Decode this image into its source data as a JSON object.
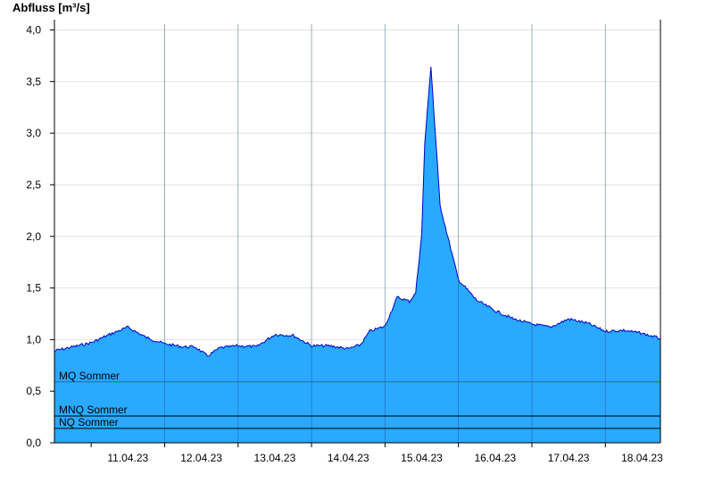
{
  "chart_data": {
    "type": "area",
    "ylabel": "Abfluss [m³/s]",
    "ylim": [
      0,
      4.1
    ],
    "yticks": [
      0.0,
      0.5,
      1.0,
      1.5,
      2.0,
      2.5,
      3.0,
      3.5,
      4.0
    ],
    "ytick_labels": [
      "0,0",
      "0,5",
      "1,0",
      "1,5",
      "2,0",
      "2,5",
      "3,0",
      "3,5",
      "4,0"
    ],
    "x_range": [
      "2023-04-10T12:00",
      "2023-04-18T18:00"
    ],
    "day_labels": [
      "11.04.23",
      "12.04.23",
      "13.04.23",
      "14.04.23",
      "15.04.23",
      "16.04.23",
      "17.04.23",
      "18.04.23"
    ],
    "grid": true,
    "series": [
      {
        "fill_color": "#29a9ff",
        "line_color": "#0000cc",
        "x": [
          "2023-04-10T12:00",
          "2023-04-10T18:00",
          "2023-04-11T00:00",
          "2023-04-11T06:00",
          "2023-04-11T12:00",
          "2023-04-11T18:00",
          "2023-04-12T00:00",
          "2023-04-12T06:00",
          "2023-04-12T10:00",
          "2023-04-12T14:00",
          "2023-04-12T18:00",
          "2023-04-13T00:00",
          "2023-04-13T06:00",
          "2023-04-13T12:00",
          "2023-04-13T18:00",
          "2023-04-14T00:00",
          "2023-04-14T06:00",
          "2023-04-14T12:00",
          "2023-04-14T16:00",
          "2023-04-14T19:00",
          "2023-04-15T00:00",
          "2023-04-15T04:00",
          "2023-04-15T08:00",
          "2023-04-15T10:00",
          "2023-04-15T12:00",
          "2023-04-15T13:00",
          "2023-04-15T15:00",
          "2023-04-15T18:00",
          "2023-04-16T00:00",
          "2023-04-16T06:00",
          "2023-04-16T12:00",
          "2023-04-16T18:00",
          "2023-04-17T00:00",
          "2023-04-17T06:00",
          "2023-04-17T12:00",
          "2023-04-17T18:00",
          "2023-04-18T00:00",
          "2023-04-18T06:00",
          "2023-04-18T12:00",
          "2023-04-18T18:00"
        ],
        "values": [
          0.89,
          0.93,
          0.97,
          1.05,
          1.12,
          1.02,
          0.96,
          0.93,
          0.93,
          0.84,
          0.92,
          0.94,
          0.93,
          1.05,
          1.04,
          0.94,
          0.94,
          0.91,
          0.95,
          1.08,
          1.13,
          1.41,
          1.37,
          1.45,
          2.02,
          2.9,
          3.65,
          2.3,
          1.58,
          1.38,
          1.28,
          1.2,
          1.15,
          1.12,
          1.2,
          1.16,
          1.08,
          1.09,
          1.06,
          1.01
        ]
      }
    ],
    "reference_lines": [
      {
        "name": "MQ Sommer",
        "value": 0.59,
        "color": "#1a8a1a"
      },
      {
        "name": "MNQ Sommer",
        "value": 0.26,
        "color": "#000000"
      },
      {
        "name": "NQ Sommer",
        "value": 0.14,
        "color": "#000000"
      }
    ]
  }
}
